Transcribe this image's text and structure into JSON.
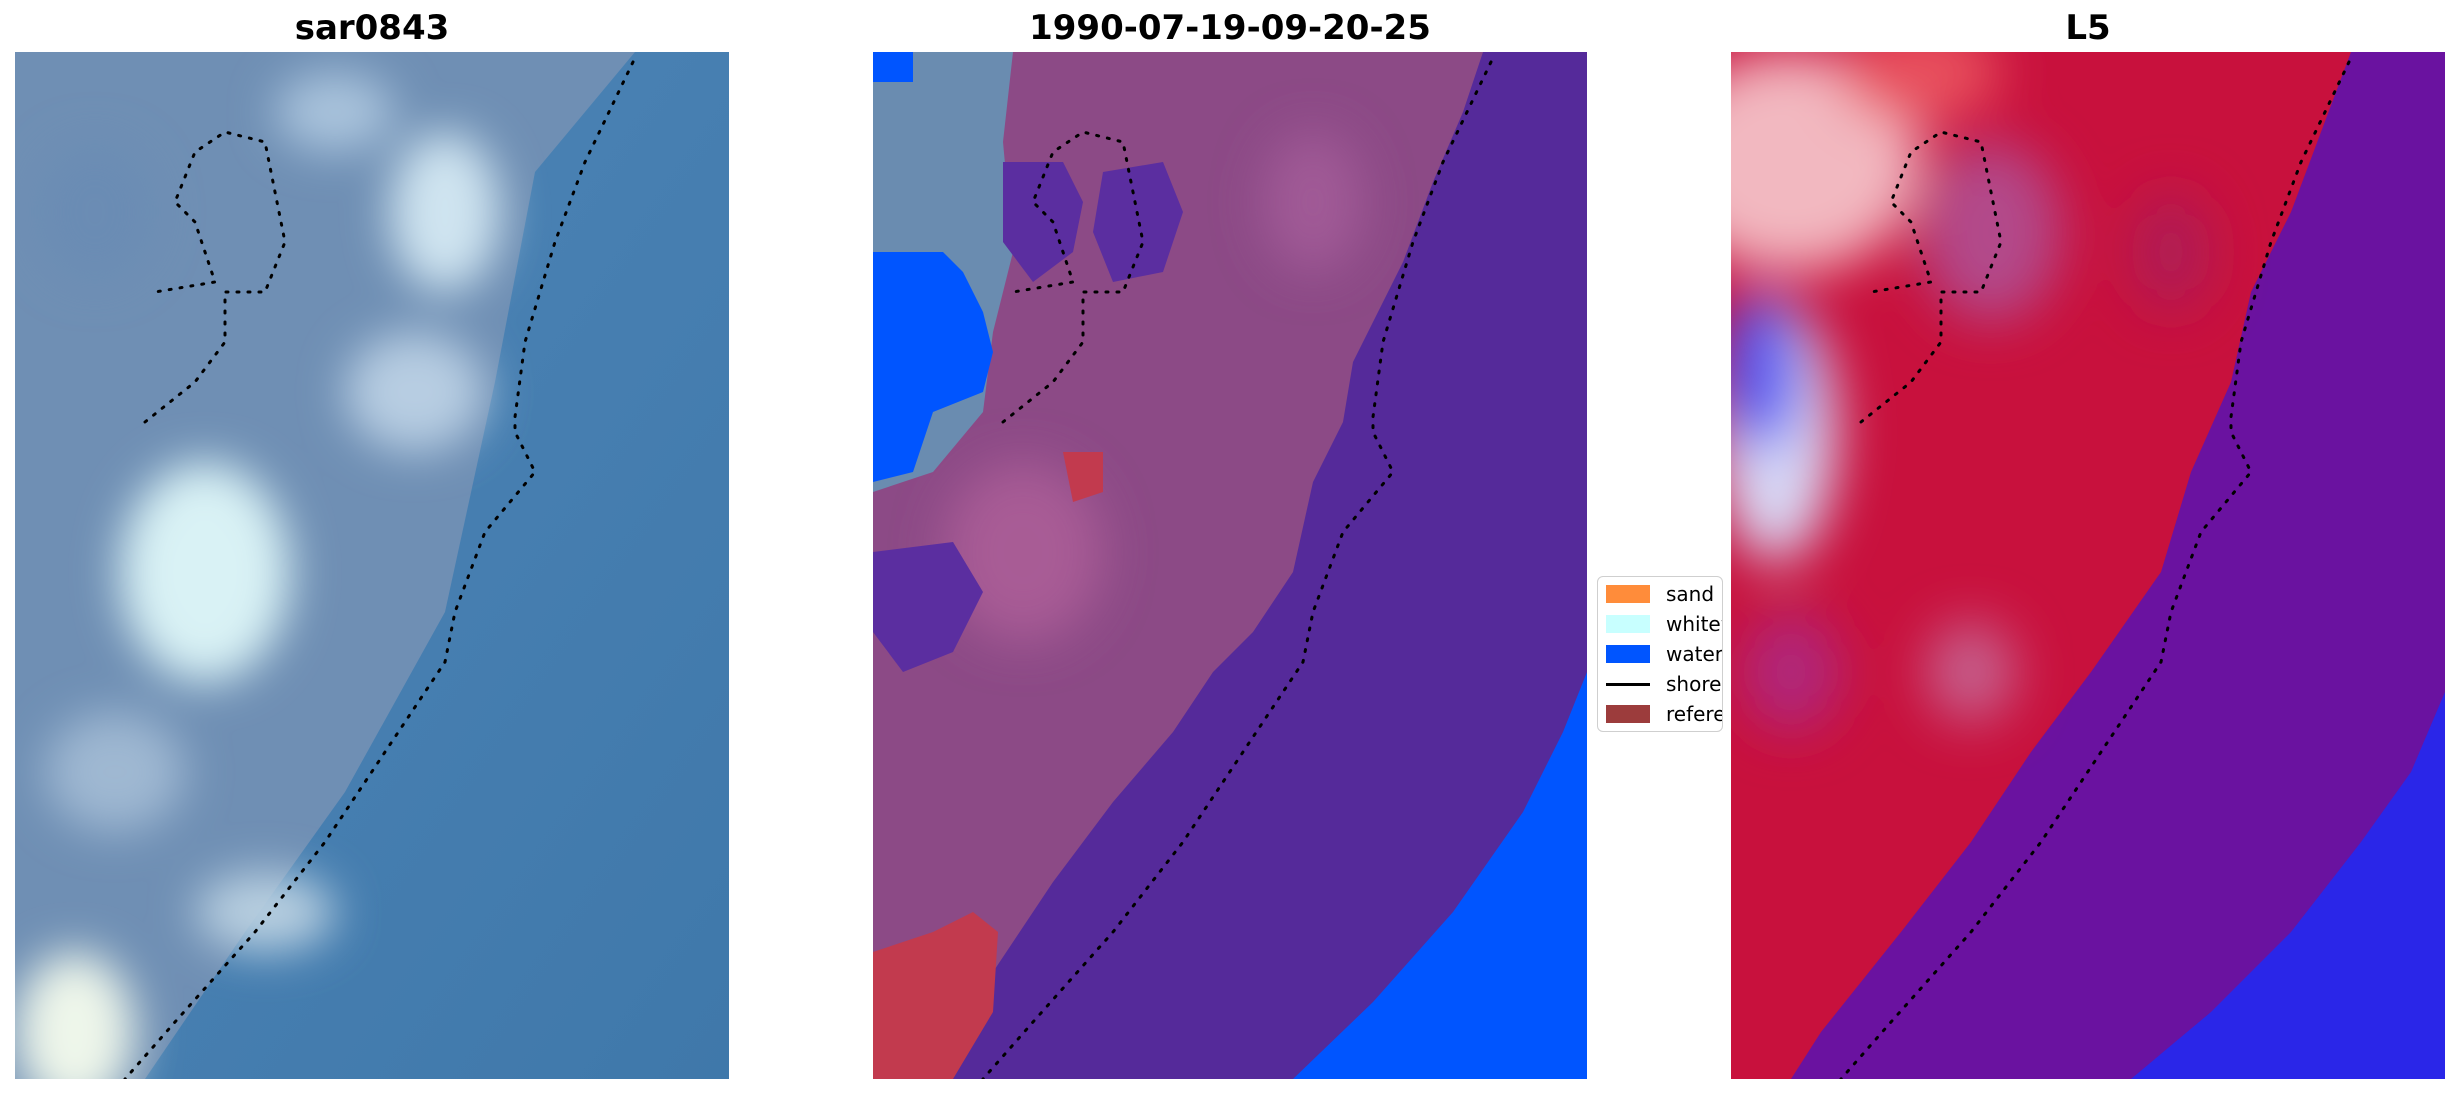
{
  "panels": [
    {
      "title": "sar0843"
    },
    {
      "title": "1990-07-19-09-20-25"
    },
    {
      "title": "L5"
    }
  ],
  "legend": {
    "items": [
      {
        "label": "sand",
        "color": "#ff8c3a",
        "kind": "patch"
      },
      {
        "label": "whitewater",
        "color": "#c8ffff",
        "kind": "patch"
      },
      {
        "label": "water",
        "color": "#0055ff",
        "kind": "patch"
      },
      {
        "label": "shoreline",
        "color": "#000000",
        "kind": "line"
      },
      {
        "label": "reference",
        "color": "#8b1a1a",
        "kind": "patch"
      }
    ]
  },
  "colors": {
    "ocean": "#4a86bc",
    "land_class": "#8c4a86",
    "water_class": "#552a9a",
    "water_blue": "#0055ff",
    "sand_red": "#c23a4e",
    "prob_red": "#c8113d",
    "prob_purple": "#6a12a0",
    "prob_blue": "#1f22ee"
  }
}
